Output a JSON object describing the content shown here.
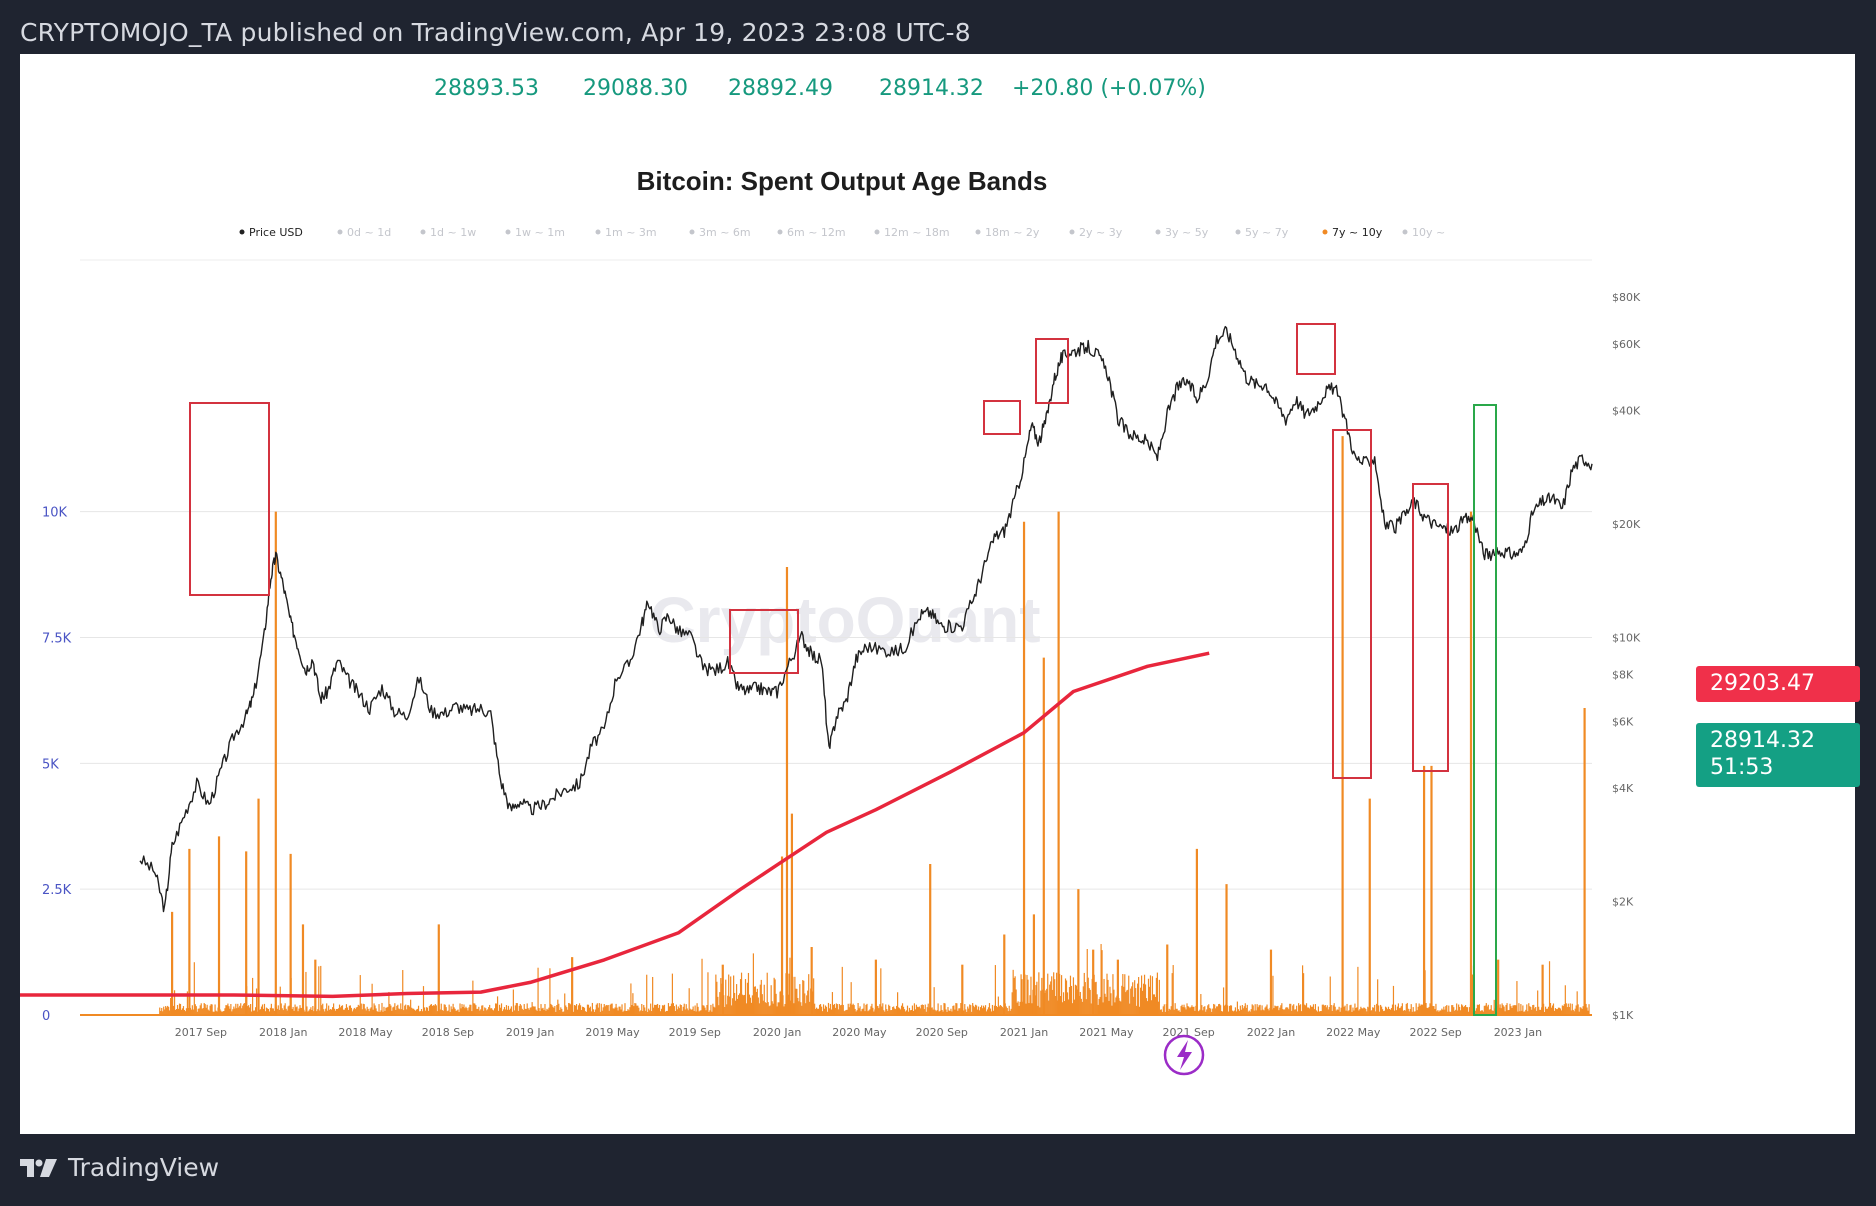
{
  "header": {
    "published": "CRYPTOMOJO_TA published on TradingView.com, Apr 19, 2023 23:08 UTC-8"
  },
  "ohlc": {
    "open": "28893.53",
    "high": "29088.30",
    "low": "28892.49",
    "close": "28914.32",
    "change": "+20.80 (+0.07%)"
  },
  "price_tags": {
    "last": "29203.47",
    "current": "28914.32",
    "countdown": "51:53"
  },
  "colors": {
    "price": "#1f1f1f",
    "spent": "#f08a24",
    "ma": "#e8263c",
    "box_red": "#d3323f",
    "box_green": "#2aa84a",
    "left_axis": "#4a54c4",
    "ohlc": "#16997e"
  },
  "footer": {
    "brand": "TradingView"
  },
  "icons": {
    "flash": "lightning-icon",
    "logo": "tradingview-logo-icon"
  },
  "chart_data": {
    "type": "line",
    "title": "Bitcoin: Spent Output Age Bands",
    "legend": [
      "Price USD",
      "0d ~ 1d",
      "1d ~ 1w",
      "1w ~ 1m",
      "1m ~ 3m",
      "3m ~ 6m",
      "6m ~ 12m",
      "12m ~ 18m",
      "18m ~ 2y",
      "2y ~ 3y",
      "3y ~ 5y",
      "5y ~ 7y",
      "7y ~ 10y",
      "10y ~"
    ],
    "legend_active": [
      "Price USD",
      "7y ~ 10y"
    ],
    "legend_placement": "top",
    "watermark": "CryptoQuant",
    "x_ticks": [
      "2017 Sep",
      "2018 Jan",
      "2018 May",
      "2018 Sep",
      "2019 Jan",
      "2019 May",
      "2019 Sep",
      "2020 Jan",
      "2020 May",
      "2020 Sep",
      "2021 Jan",
      "2021 May",
      "2021 Sep",
      "2022 Jan",
      "2022 May",
      "2022 Sep",
      "2023 Jan"
    ],
    "left_ticks": [
      "0",
      "2.5K",
      "5K",
      "7.5K",
      "10K"
    ],
    "left_ylim": [
      0,
      12500
    ],
    "right_ticks": [
      "$1K",
      "$2K",
      "$4K",
      "$6K",
      "$8K",
      "$10K",
      "$20K",
      "$40K",
      "$60K",
      "$80K"
    ],
    "right_scale": "log",
    "grid": true,
    "x_range": [
      2017.42,
      2023.3
    ],
    "series": [
      {
        "name": "Price USD",
        "axis": "right",
        "points": [
          [
            2017.42,
            2600
          ],
          [
            2017.48,
            2400
          ],
          [
            2017.52,
            1900
          ],
          [
            2017.55,
            2800
          ],
          [
            2017.6,
            3400
          ],
          [
            2017.65,
            4100
          ],
          [
            2017.7,
            3600
          ],
          [
            2017.75,
            4500
          ],
          [
            2017.8,
            5500
          ],
          [
            2017.85,
            6200
          ],
          [
            2017.88,
            7000
          ],
          [
            2017.92,
            9800
          ],
          [
            2017.95,
            14500
          ],
          [
            2017.97,
            16500
          ],
          [
            2018.0,
            13800
          ],
          [
            2018.03,
            11000
          ],
          [
            2018.06,
            9500
          ],
          [
            2018.09,
            8200
          ],
          [
            2018.12,
            8800
          ],
          [
            2018.15,
            6900
          ],
          [
            2018.18,
            7200
          ],
          [
            2018.22,
            8700
          ],
          [
            2018.26,
            7800
          ],
          [
            2018.3,
            7200
          ],
          [
            2018.35,
            6500
          ],
          [
            2018.4,
            7400
          ],
          [
            2018.45,
            6400
          ],
          [
            2018.5,
            6200
          ],
          [
            2018.55,
            7800
          ],
          [
            2018.6,
            6400
          ],
          [
            2018.65,
            6300
          ],
          [
            2018.7,
            6600
          ],
          [
            2018.75,
            6400
          ],
          [
            2018.8,
            6500
          ],
          [
            2018.84,
            6300
          ],
          [
            2018.88,
            4200
          ],
          [
            2018.92,
            3500
          ],
          [
            2018.96,
            3700
          ],
          [
            2019.0,
            3500
          ],
          [
            2019.05,
            3600
          ],
          [
            2019.1,
            3800
          ],
          [
            2019.15,
            4000
          ],
          [
            2019.2,
            4100
          ],
          [
            2019.25,
            5200
          ],
          [
            2019.3,
            5700
          ],
          [
            2019.35,
            7900
          ],
          [
            2019.4,
            8500
          ],
          [
            2019.45,
            10800
          ],
          [
            2019.48,
            12500
          ],
          [
            2019.52,
            10500
          ],
          [
            2019.56,
            11500
          ],
          [
            2019.6,
            10400
          ],
          [
            2019.65,
            10100
          ],
          [
            2019.7,
            8300
          ],
          [
            2019.75,
            8200
          ],
          [
            2019.8,
            8600
          ],
          [
            2019.84,
            7400
          ],
          [
            2019.88,
            7200
          ],
          [
            2019.92,
            7400
          ],
          [
            2019.96,
            7200
          ],
          [
            2020.0,
            7200
          ],
          [
            2020.05,
            8600
          ],
          [
            2020.1,
            10100
          ],
          [
            2020.14,
            9000
          ],
          [
            2020.18,
            8700
          ],
          [
            2020.21,
            5000
          ],
          [
            2020.24,
            6200
          ],
          [
            2020.28,
            6800
          ],
          [
            2020.32,
            8800
          ],
          [
            2020.36,
            9500
          ],
          [
            2020.42,
            9300
          ],
          [
            2020.48,
            9200
          ],
          [
            2020.52,
            9500
          ],
          [
            2020.58,
            11500
          ],
          [
            2020.62,
            11700
          ],
          [
            2020.66,
            10800
          ],
          [
            2020.7,
            10700
          ],
          [
            2020.75,
            10800
          ],
          [
            2020.8,
            13000
          ],
          [
            2020.84,
            15500
          ],
          [
            2020.88,
            18500
          ],
          [
            2020.92,
            19200
          ],
          [
            2020.96,
            23000
          ],
          [
            2021.0,
            29000
          ],
          [
            2021.03,
            36500
          ],
          [
            2021.06,
            33000
          ],
          [
            2021.09,
            38000
          ],
          [
            2021.12,
            48000
          ],
          [
            2021.15,
            55000
          ],
          [
            2021.18,
            57000
          ],
          [
            2021.22,
            58000
          ],
          [
            2021.26,
            59000
          ],
          [
            2021.3,
            56000
          ],
          [
            2021.34,
            50000
          ],
          [
            2021.38,
            38000
          ],
          [
            2021.42,
            35000
          ],
          [
            2021.46,
            34000
          ],
          [
            2021.5,
            33000
          ],
          [
            2021.54,
            30000
          ],
          [
            2021.58,
            39000
          ],
          [
            2021.62,
            46000
          ],
          [
            2021.66,
            48000
          ],
          [
            2021.7,
            43000
          ],
          [
            2021.74,
            48000
          ],
          [
            2021.78,
            62000
          ],
          [
            2021.82,
            65000
          ],
          [
            2021.86,
            57000
          ],
          [
            2021.9,
            49000
          ],
          [
            2021.94,
            47000
          ],
          [
            2021.98,
            47000
          ],
          [
            2022.02,
            42000
          ],
          [
            2022.06,
            38000
          ],
          [
            2022.1,
            43000
          ],
          [
            2022.14,
            39000
          ],
          [
            2022.18,
            41000
          ],
          [
            2022.22,
            45000
          ],
          [
            2022.26,
            46000
          ],
          [
            2022.3,
            38000
          ],
          [
            2022.34,
            30000
          ],
          [
            2022.38,
            29000
          ],
          [
            2022.42,
            30000
          ],
          [
            2022.46,
            20000
          ],
          [
            2022.5,
            19500
          ],
          [
            2022.54,
            21000
          ],
          [
            2022.58,
            23000
          ],
          [
            2022.62,
            21000
          ],
          [
            2022.66,
            20000
          ],
          [
            2022.7,
            19500
          ],
          [
            2022.74,
            19200
          ],
          [
            2022.78,
            20500
          ],
          [
            2022.82,
            20800
          ],
          [
            2022.86,
            16800
          ],
          [
            2022.9,
            16500
          ],
          [
            2022.94,
            17000
          ],
          [
            2022.98,
            16600
          ],
          [
            2023.02,
            17000
          ],
          [
            2023.06,
            21500
          ],
          [
            2023.1,
            23000
          ],
          [
            2023.14,
            23500
          ],
          [
            2023.18,
            22000
          ],
          [
            2023.22,
            28000
          ],
          [
            2023.26,
            30000
          ],
          [
            2023.3,
            28900
          ]
        ]
      },
      {
        "name": "7y ~ 10y",
        "axis": "left",
        "type": "bar",
        "spikes": [
          [
            2017.55,
            2050
          ],
          [
            2017.62,
            3300
          ],
          [
            2017.74,
            3550
          ],
          [
            2017.85,
            3250
          ],
          [
            2017.9,
            4300
          ],
          [
            2017.97,
            10000
          ],
          [
            2018.03,
            3200
          ],
          [
            2018.08,
            1800
          ],
          [
            2018.13,
            1100
          ],
          [
            2018.63,
            1800
          ],
          [
            2019.17,
            1150
          ],
          [
            2019.78,
            1000
          ],
          [
            2020.02,
            3150
          ],
          [
            2020.04,
            8900
          ],
          [
            2020.06,
            4000
          ],
          [
            2020.14,
            1350
          ],
          [
            2020.4,
            1100
          ],
          [
            2020.62,
            3000
          ],
          [
            2020.75,
            1000
          ],
          [
            2020.92,
            1600
          ],
          [
            2021.0,
            9800
          ],
          [
            2021.04,
            2000
          ],
          [
            2021.08,
            7100
          ],
          [
            2021.14,
            10000
          ],
          [
            2021.22,
            2500
          ],
          [
            2021.28,
            1300
          ],
          [
            2021.38,
            1100
          ],
          [
            2021.58,
            1400
          ],
          [
            2021.7,
            3300
          ],
          [
            2021.82,
            2600
          ],
          [
            2022.0,
            1300
          ],
          [
            2022.29,
            11500
          ],
          [
            2022.4,
            4300
          ],
          [
            2022.62,
            4950
          ],
          [
            2022.65,
            4950
          ],
          [
            2022.81,
            10000
          ],
          [
            2022.92,
            1100
          ],
          [
            2023.1,
            1000
          ],
          [
            2023.27,
            6100
          ]
        ]
      },
      {
        "name": "",
        "axis": "right",
        "color": "#e8263c",
        "points": [
          [
            2017.0,
            1120
          ],
          [
            2017.4,
            1130
          ],
          [
            2017.8,
            1130
          ],
          [
            2018.2,
            1120
          ],
          [
            2018.5,
            1140
          ],
          [
            2018.8,
            1150
          ],
          [
            2019.0,
            1220
          ],
          [
            2019.3,
            1400
          ],
          [
            2019.6,
            1650
          ],
          [
            2019.85,
            2150
          ],
          [
            2020.0,
            2500
          ],
          [
            2020.2,
            3050
          ],
          [
            2020.4,
            3500
          ],
          [
            2020.7,
            4400
          ],
          [
            2021.0,
            5600
          ],
          [
            2021.2,
            7200
          ],
          [
            2021.5,
            8400
          ],
          [
            2021.75,
            9100
          ]
        ]
      }
    ]
  }
}
